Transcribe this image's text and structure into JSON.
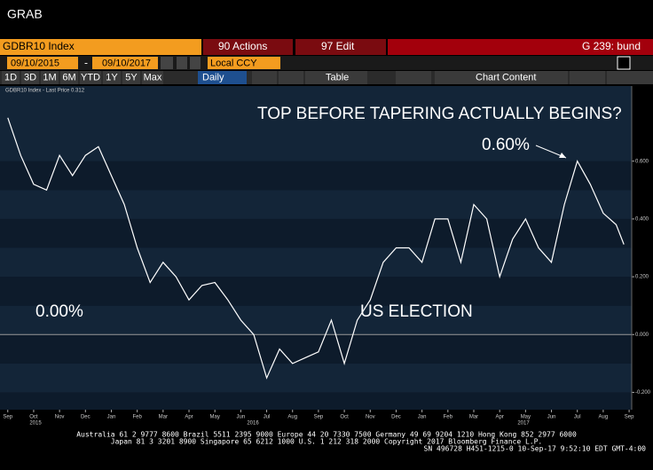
{
  "window": {
    "title": "GRAB"
  },
  "toolbar": {
    "security": "GDBR10 Index",
    "actions": "90 Actions",
    "edit": "97 Edit",
    "function": "G 239: bund",
    "start_date": "09/10/2015",
    "date_separator": "-",
    "end_date": "09/10/2017",
    "currency": "Local CCY",
    "periods": [
      "1D",
      "3D",
      "1M",
      "6M",
      "YTD",
      "1Y",
      "5Y",
      "Max"
    ],
    "frequency": "Daily",
    "table": "Table",
    "chart_content": "Chart Content"
  },
  "chart_data": {
    "type": "line",
    "legend": "GDBR10 Index - Last Price 0.312",
    "annotations": [
      "TOP BEFORE TAPERING ACTUALLY BEGINS?",
      "0.60%",
      "0.00%",
      "US ELECTION"
    ],
    "x": [
      0,
      0.5,
      1,
      1.5,
      2,
      2.5,
      3,
      3.5,
      4,
      4.5,
      5,
      5.5,
      6,
      6.5,
      7,
      7.5,
      8,
      8.5,
      9,
      9.5,
      10,
      10.5,
      11,
      11.5,
      12,
      12.5,
      13,
      13.5,
      14,
      14.5,
      15,
      15.5,
      16,
      16.5,
      17,
      17.5,
      18,
      18.5,
      19,
      19.5,
      20,
      20.5,
      21,
      21.5,
      22,
      22.5,
      23,
      23.5,
      23.8
    ],
    "series": [
      {
        "name": "GDBR10 Index",
        "color": "#ffffff",
        "values": [
          0.75,
          0.62,
          0.52,
          0.5,
          0.62,
          0.55,
          0.62,
          0.65,
          0.55,
          0.45,
          0.3,
          0.18,
          0.25,
          0.2,
          0.12,
          0.17,
          0.18,
          0.12,
          0.05,
          0,
          -0.15,
          -0.05,
          -0.1,
          -0.08,
          -0.06,
          0.05,
          -0.1,
          0.05,
          0.12,
          0.25,
          0.3,
          0.3,
          0.25,
          0.4,
          0.4,
          0.25,
          0.45,
          0.4,
          0.2,
          0.33,
          0.4,
          0.3,
          0.25,
          0.45,
          0.6,
          0.52,
          0.42,
          0.38,
          0.312
        ]
      }
    ],
    "reference_line": 0,
    "xlim": [
      -0.3,
      24.1
    ],
    "xticks": [
      {
        "value": 0,
        "label": "Sep"
      },
      {
        "value": 1,
        "label": "Oct"
      },
      {
        "value": 2,
        "label": "Nov"
      },
      {
        "value": 3,
        "label": "Dec"
      },
      {
        "value": 4,
        "label": "Jan"
      },
      {
        "value": 5,
        "label": "Feb"
      },
      {
        "value": 6,
        "label": "Mar"
      },
      {
        "value": 7,
        "label": "Apr"
      },
      {
        "value": 8,
        "label": "May"
      },
      {
        "value": 9,
        "label": "Jun"
      },
      {
        "value": 10,
        "label": "Jul"
      },
      {
        "value": 11,
        "label": "Aug"
      },
      {
        "value": 12,
        "label": "Sep"
      },
      {
        "value": 13,
        "label": "Oct"
      },
      {
        "value": 14,
        "label": "Nov"
      },
      {
        "value": 15,
        "label": "Dec"
      },
      {
        "value": 16,
        "label": "Jan"
      },
      {
        "value": 17,
        "label": "Feb"
      },
      {
        "value": 18,
        "label": "Mar"
      },
      {
        "value": 19,
        "label": "Apr"
      },
      {
        "value": 20,
        "label": "May"
      },
      {
        "value": 21,
        "label": "Jun"
      },
      {
        "value": 22,
        "label": "Jul"
      },
      {
        "value": 23,
        "label": "Aug"
      },
      {
        "value": 24,
        "label": "Sep"
      }
    ],
    "year_labels": [
      "2015",
      "2016",
      "2017"
    ],
    "ylim": [
      -0.26,
      0.86
    ],
    "yticks": [
      {
        "value": -0.2,
        "label": "-0.200"
      },
      {
        "value": 0,
        "label": "0.000"
      },
      {
        "value": 0.2,
        "label": "0.200"
      },
      {
        "value": 0.4,
        "label": "0.400"
      },
      {
        "value": 0.6,
        "label": "0.600"
      }
    ]
  },
  "footer": {
    "lines": [
      "Australia 61 2 9777 8600 Brazil 5511 2395 9000 Europe 44 20 7330 7500 Germany 49 69 9204 1210 Hong Kong 852 2977 6000",
      "Japan 81 3 3201 8900         Singapore 65 6212 1000         U.S. 1 212 318 2000         Copyright 2017 Bloomberg Finance L.P.",
      "SN 496728 H451-1215-0 10-Sep-17  9:52:10 EDT  GMT-4:00"
    ]
  }
}
